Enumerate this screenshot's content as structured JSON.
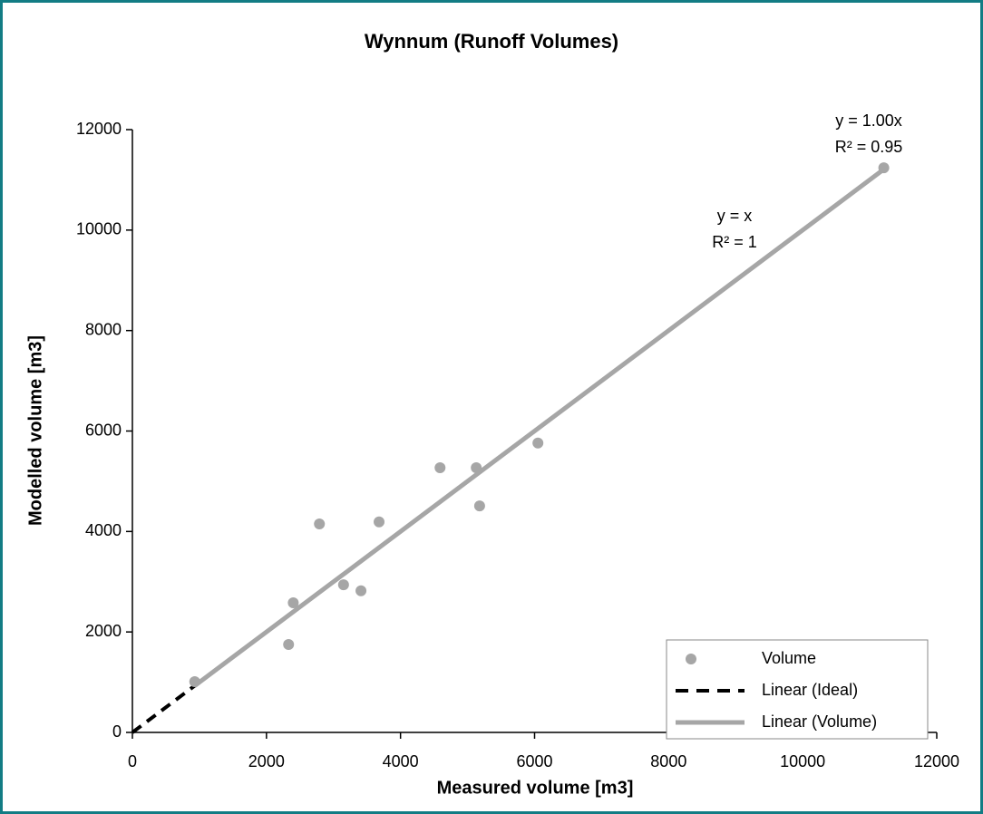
{
  "chart_data": {
    "type": "scatter",
    "title": "Wynnum (Runoff Volumes)",
    "x_label": "Measured volume [m3]",
    "y_label": "Modelled volume [m3]",
    "xlim": [
      0,
      12000
    ],
    "ylim": [
      0,
      12000
    ],
    "xticks": [
      0,
      2000,
      4000,
      6000,
      8000,
      10000,
      12000
    ],
    "yticks": [
      0,
      2000,
      4000,
      6000,
      8000,
      10000,
      12000
    ],
    "legend": "lower right",
    "series": [
      {
        "name": "Volume",
        "kind": "scatter",
        "color": "#a6a6a6",
        "x": [
          930,
          2330,
          2400,
          2790,
          3150,
          3410,
          3680,
          4590,
          5130,
          5180,
          6050,
          11210
        ],
        "values": [
          1010,
          1750,
          2580,
          4150,
          2940,
          2820,
          4190,
          5270,
          5270,
          4510,
          5760,
          11240
        ]
      },
      {
        "name": "Linear (Ideal)",
        "kind": "line",
        "dashed": true,
        "color": "#000000",
        "x": [
          0,
          11210
        ],
        "values": [
          0,
          11210
        ]
      },
      {
        "name": "Linear (Volume)",
        "kind": "line",
        "dashed": false,
        "color": "#a6a6a6",
        "x": [
          930,
          11210
        ],
        "values": [
          930,
          11210
        ]
      }
    ],
    "annotations": [
      "y = 1.00x",
      "R² = 0.95",
      "y = x",
      "R² = 1"
    ]
  }
}
